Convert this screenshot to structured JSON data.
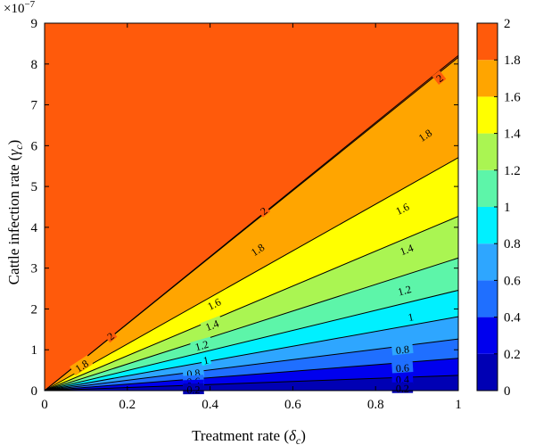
{
  "chart_data": {
    "type": "contour",
    "title": "",
    "xlabel": "Treatment rate",
    "xlabel_symbol": "δ",
    "xlabel_sub": "c",
    "ylabel": "Cattle infection rate",
    "ylabel_symbol": "γ",
    "ylabel_sub": "c",
    "xlim": [
      0,
      1
    ],
    "ylim": [
      0,
      9e-07
    ],
    "x_ticks": [
      "0",
      "0.2",
      "0.4",
      "0.6",
      "0.8",
      "1"
    ],
    "y_ticks": [
      "0",
      "1",
      "2",
      "3",
      "4",
      "5",
      "6",
      "7",
      "8",
      "9"
    ],
    "y_exponent_base": "×10",
    "y_exponent": "−7",
    "surface_model": "value = 2 - 2*exp(-k*gamma/delta)",
    "k": 2820000.0,
    "levels": [
      0.2,
      0.4,
      0.6,
      0.8,
      1,
      1.2,
      1.4,
      1.6,
      1.8,
      2
    ],
    "band_colors": [
      "#0000b4",
      "#0000ee",
      "#1f6fff",
      "#2ea6ff",
      "#00f0ff",
      "#5df5a9",
      "#aaf552",
      "#ffff00",
      "#ffa500",
      "#ff5a0b"
    ],
    "colorbar": {
      "ticks": [
        "0",
        "0.2",
        "0.4",
        "0.6",
        "0.8",
        "1",
        "1.2",
        "1.4",
        "1.6",
        "1.8",
        "2"
      ]
    },
    "contour_labels": [
      {
        "text": "2",
        "x": 0.53,
        "gamma": 4.4e-07
      },
      {
        "text": "2",
        "x": 0.955,
        "gamma": 7.65e-07
      },
      {
        "text": "2",
        "x": 0.16,
        "gamma": 1.33e-07
      },
      {
        "text": "1.8",
        "x": 0.92,
        "gamma": 6.25e-07
      },
      {
        "text": "1.8",
        "x": 0.515,
        "gamma": 3.45e-07
      },
      {
        "text": "1.8",
        "x": 0.09,
        "gamma": 6e-08
      },
      {
        "text": "1.6",
        "x": 0.865,
        "gamma": 4.45e-07
      },
      {
        "text": "1.6",
        "x": 0.41,
        "gamma": 2.12e-07
      },
      {
        "text": "1.4",
        "x": 0.875,
        "gamma": 3.45e-07
      },
      {
        "text": "1.4",
        "x": 0.405,
        "gamma": 1.6e-07
      },
      {
        "text": "1.2",
        "x": 0.87,
        "gamma": 2.45e-07
      },
      {
        "text": "1.2",
        "x": 0.38,
        "gamma": 1.1e-07
      },
      {
        "text": "1",
        "x": 0.885,
        "gamma": 1.8e-07
      },
      {
        "text": "1",
        "x": 0.39,
        "gamma": 7.4e-08
      },
      {
        "text": "0.8",
        "x": 0.865,
        "gamma": 1e-07
      },
      {
        "text": "0.8",
        "x": 0.36,
        "gamma": 4.2e-08
      },
      {
        "text": "0.6",
        "x": 0.865,
        "gamma": 5.5e-08
      },
      {
        "text": "0.6",
        "x": 0.36,
        "gamma": 2.2e-08
      },
      {
        "text": "0.4",
        "x": 0.865,
        "gamma": 2.7e-08
      },
      {
        "text": "0.4",
        "x": 0.36,
        "gamma": 1.1e-08
      },
      {
        "text": "0.2",
        "x": 0.865,
        "gamma": 5e-09
      },
      {
        "text": "0.2",
        "x": 0.36,
        "gamma": 2e-09
      }
    ]
  }
}
